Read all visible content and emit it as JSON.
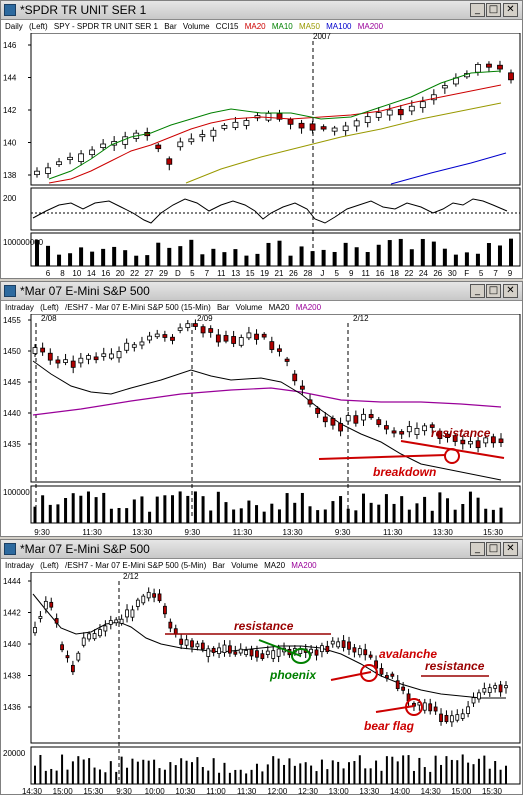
{
  "colors": {
    "ma20": "#cc0000",
    "ma10": "#008000",
    "ma50": "#999900",
    "ma100": "#0000cc",
    "ma200": "#990099",
    "annot_red": "#cc0000",
    "annot_green": "#008000"
  },
  "win1": {
    "title": "*SPDR TR UNIT SER 1",
    "info": {
      "period": "Daily",
      "scale": "(Left)",
      "symbol": "SPY - SPDR TR UNIT SER 1",
      "type": "Bar",
      "volume": "Volume",
      "cci": "CCI15",
      "ma20": "MA20",
      "ma10": "MA10",
      "ma50": "MA50",
      "ma100": "MA100",
      "ma200": "MA200"
    },
    "year_label": "2007",
    "price_ticks": [
      "146",
      "144",
      "142",
      "140",
      "138"
    ],
    "cci_tick": "200",
    "vol_tick": "100000000",
    "x_ticks": [
      "6",
      "8",
      "10",
      "14",
      "16",
      "20",
      "22",
      "27",
      "29",
      "D",
      "5",
      "7",
      "11",
      "13",
      "15",
      "19",
      "21",
      "26",
      "28",
      "J",
      "5",
      "9",
      "11",
      "16",
      "18",
      "22",
      "24",
      "26",
      "30",
      "F",
      "5",
      "7",
      "9"
    ]
  },
  "win2": {
    "title": "*Mar 07  E-Mini S&P 500",
    "info": {
      "period": "Intraday",
      "scale": "(Left)",
      "symbol": "/ESH7 - Mar 07  E-Mini S&P 500  (15-Min)",
      "type": "Bar",
      "volume": "Volume",
      "ma20": "MA20",
      "ma200": "MA200"
    },
    "date_labels": [
      "2/08",
      "2/09",
      "2/12"
    ],
    "price_ticks": [
      "1455",
      "1450",
      "1445",
      "1440",
      "1435"
    ],
    "vol_tick": "100000",
    "x_ticks": [
      "9:30",
      "11:30",
      "13:30",
      "9:30",
      "11:30",
      "13:30",
      "9:30",
      "11:30",
      "13:30",
      "15:30"
    ],
    "annotations": {
      "resistance": "resistance",
      "breakdown": "breakdown"
    }
  },
  "win3": {
    "title": "*Mar 07  E-Mini S&P 500",
    "info": {
      "period": "Intraday",
      "scale": "(Left)",
      "symbol": "/ESH7 - Mar 07  E-Mini S&P 500  (5-Min)",
      "type": "Bar",
      "volume": "Volume",
      "ma20": "MA20",
      "ma200": "MA200"
    },
    "date_label": "2/12",
    "price_ticks": [
      "1444",
      "1442",
      "1440",
      "1438",
      "1436"
    ],
    "vol_tick": "20000",
    "x_ticks": [
      "14:30",
      "15:00",
      "15:30",
      "9:30",
      "10:00",
      "10:30",
      "11:00",
      "11:30",
      "12:00",
      "12:30",
      "13:00",
      "13:30",
      "14:00",
      "14:30",
      "15:00",
      "15:30"
    ],
    "annotations": {
      "resistance_left": "resistance",
      "phoenix": "phoenix",
      "avalanche": "avalanche",
      "resistance_right": "resistance",
      "bear_flag": "bear flag"
    }
  }
}
